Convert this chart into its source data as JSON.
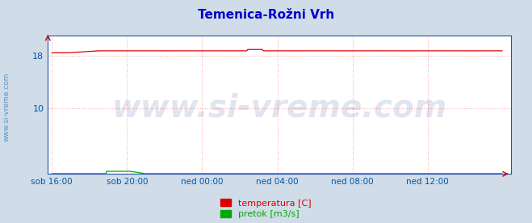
{
  "title": "Temenica-Rožni Vrh",
  "title_color": "#0000cc",
  "title_fontsize": 11,
  "bg_color": "#d0dce8",
  "plot_bg_color": "#ffffff",
  "grid_color": "#ffaaaa",
  "grid_style": ":",
  "x_label_color": "#0055aa",
  "y_label_color": "#0055aa",
  "watermark": "www.si-vreme.com",
  "watermark_color": "#1a3a8a",
  "watermark_alpha": 0.13,
  "watermark_fontsize": 28,
  "ylim": [
    0,
    21
  ],
  "yticks": [
    10,
    18
  ],
  "xtick_labels": [
    "sob 16:00",
    "sob 20:00",
    "ned 00:00",
    "ned 04:00",
    "ned 08:00",
    "ned 12:00"
  ],
  "xtick_positions": [
    0,
    96,
    192,
    288,
    384,
    480
  ],
  "num_points": 576,
  "temp_value": 18.7,
  "temp_dip_start": 20,
  "temp_dip_end": 60,
  "temp_dip_value": 18.4,
  "temp_rise_start": 250,
  "temp_rise_value": 18.9,
  "flow_value": 0.05,
  "flow_bump_start": 70,
  "flow_bump_end": 100,
  "flow_bump_value": 0.4,
  "temp_color": "#dd0000",
  "flow_color": "#00aa00",
  "border_color": "#2255aa",
  "legend_temp_color": "#dd0000",
  "legend_flow_color": "#00aa00",
  "legend_temp_label": "temperatura [C]",
  "legend_flow_label": "pretok [m3/s]",
  "legend_fontsize": 8,
  "sidebar_text": "www.si-vreme.com",
  "sidebar_color": "#4488bb",
  "arrow_color": "#cc0000"
}
